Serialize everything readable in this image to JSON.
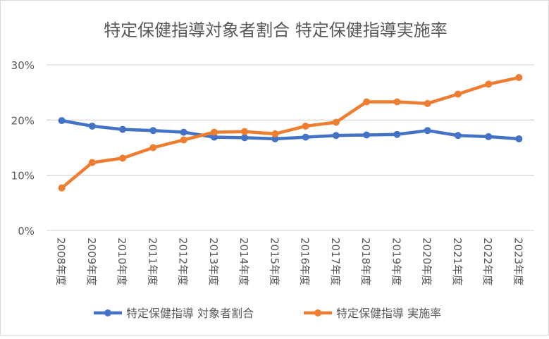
{
  "chart_data": {
    "type": "line",
    "title": "特定保健指導対象者割合 特定保健指導実施率",
    "categories": [
      "2008年度",
      "2009年度",
      "2010年度",
      "2011年度",
      "2012年度",
      "2013年度",
      "2014年度",
      "2015年度",
      "2016年度",
      "2017年度",
      "2018年度",
      "2019年度",
      "2020年度",
      "2021年度",
      "2022年度",
      "2023年度"
    ],
    "series": [
      {
        "name": "特定保健指導 対象者割合",
        "color": "#4472c4",
        "values": [
          19.9,
          18.9,
          18.3,
          18.1,
          17.8,
          16.9,
          16.8,
          16.6,
          16.9,
          17.2,
          17.3,
          17.4,
          18.1,
          17.2,
          17.0,
          16.6
        ]
      },
      {
        "name": "特定保健指導 実施率",
        "color": "#ed7d31",
        "values": [
          7.7,
          12.3,
          13.1,
          15.0,
          16.4,
          17.8,
          17.9,
          17.5,
          18.9,
          19.6,
          23.3,
          23.3,
          23.0,
          24.7,
          26.5,
          27.7
        ]
      }
    ],
    "yticks": [
      "0%",
      "10%",
      "20%",
      "30%"
    ],
    "ylim": [
      0,
      30
    ],
    "grid": true,
    "legend": "bottom",
    "xlabel": "",
    "ylabel": ""
  }
}
